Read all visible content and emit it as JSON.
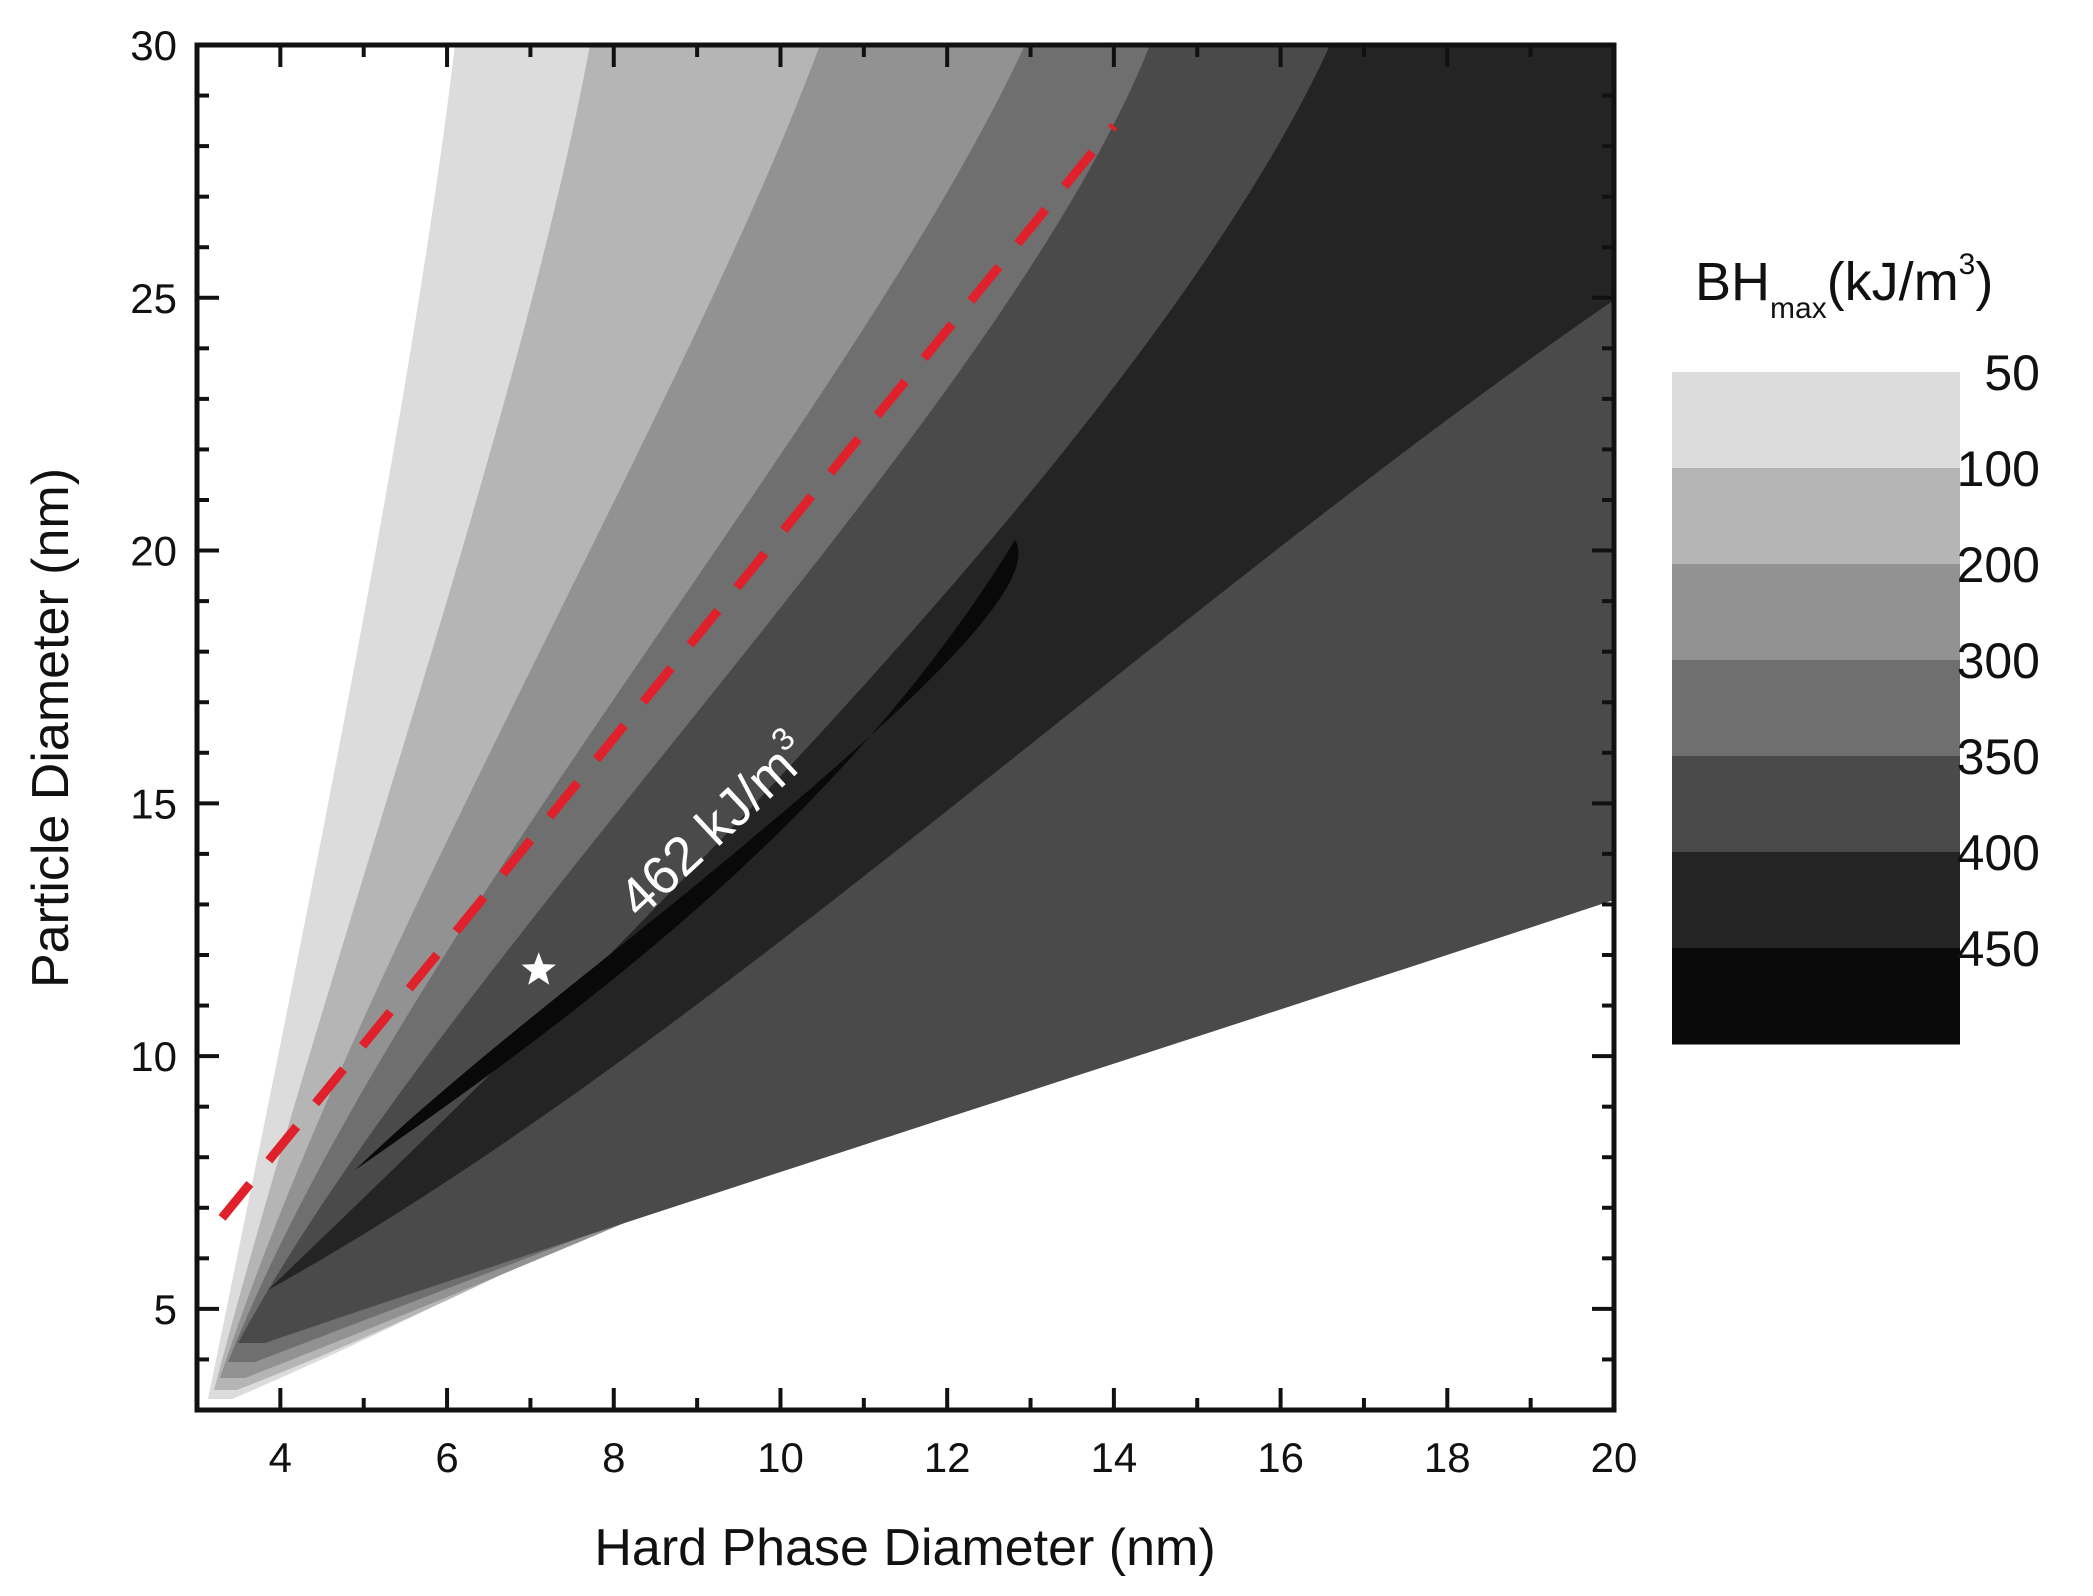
{
  "chart_data": {
    "type": "contour",
    "xlabel": "Hard Phase Diameter (nm)",
    "ylabel": "Particle Diameter (nm)",
    "xlim": [
      3,
      20
    ],
    "ylim": [
      3,
      30
    ],
    "xticks": [
      "4",
      "6",
      "8",
      "10",
      "12",
      "14",
      "16",
      "18",
      "20"
    ],
    "yticks": [
      "5",
      "10",
      "15",
      "20",
      "25",
      "30"
    ],
    "colorbar": {
      "title_main": "BH",
      "title_sub": "max",
      "title_unit": "(kJ/m",
      "title_sup": "3",
      "title_end": ")",
      "levels": [
        {
          "label": "50",
          "color": "#dcdcdc"
        },
        {
          "label": "100",
          "color": "#b5b5b5"
        },
        {
          "label": "200",
          "color": "#929292"
        },
        {
          "label": "300",
          "color": "#6f6f6f"
        },
        {
          "label": "350",
          "color": "#4a4a4a"
        },
        {
          "label": "400",
          "color": "#242424"
        },
        {
          "label": "450",
          "color": "#090909"
        }
      ]
    },
    "optimal_line": {
      "color": "#e0202a",
      "style": "dashed",
      "points": [
        [
          3.3,
          6.8
        ],
        [
          14.0,
          28.4
        ]
      ]
    },
    "maximum_point": {
      "x": 7.1,
      "y": 11.7,
      "marker": "star"
    },
    "annotation": {
      "text": "462 kJ/m",
      "sup": "3"
    }
  }
}
